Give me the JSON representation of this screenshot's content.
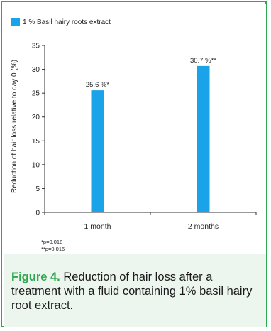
{
  "chart_data": {
    "type": "bar",
    "categories": [
      "1 month",
      "2 months"
    ],
    "series": [
      {
        "name": "1 % Basil hairy roots extract",
        "values": [
          25.6,
          30.7
        ],
        "color": "#1aa3e8"
      }
    ],
    "data_labels": [
      "25.6 %*",
      "30.7 %**"
    ],
    "ylabel": "Reduction of hair loss relative to day 0 (%)",
    "ylim": [
      0,
      35
    ],
    "yticks": [
      0,
      5,
      10,
      15,
      20,
      25,
      30,
      35
    ],
    "grid": false,
    "legend_position": "top-left"
  },
  "legend": {
    "label": "1 % Basil hairy roots extract",
    "color": "#1aa3e8"
  },
  "footnotes": {
    "p1": "*p=0.018",
    "p2": "**p=0.016"
  },
  "caption": {
    "label": "Figure 4.",
    "text": " Reduction of hair loss after a treatment with a fluid containing 1% basil hairy root extract."
  },
  "colors": {
    "border": "#2fa84f",
    "caption_background": "#ecf6ee",
    "bar": "#1aa3e8"
  }
}
